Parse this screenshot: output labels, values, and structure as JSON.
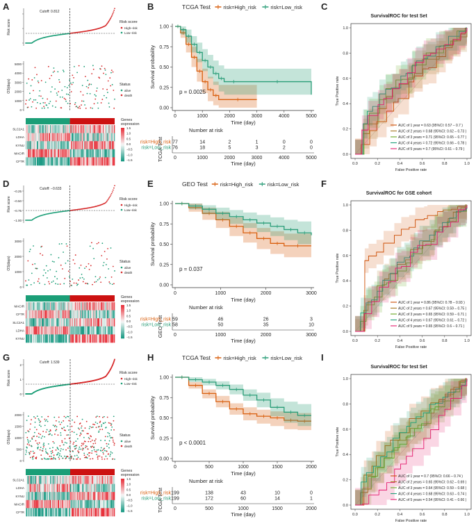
{
  "colors": {
    "high": "#d95f0e",
    "low": "#2a9d78",
    "risk_high": "#d62728",
    "risk_low": "#1b9e77",
    "heat_hi": "#e8323c",
    "heat_mid": "#f7f7f7",
    "heat_lo": "#1c9b85",
    "roc": [
      "#cc4c02",
      "#a6761d",
      "#66a61e",
      "#1b9e77",
      "#e31a6c"
    ]
  },
  "figure": {
    "rows": [
      {
        "risk": {
          "letter": "A",
          "cutoff": "Cutoff: 0.812",
          "ylabel_risk": "Risk score",
          "ylabel_os": "OS(days)",
          "risk_legend": {
            "title": "Risk score",
            "items": [
              "High–risk",
              "Low–risk"
            ]
          },
          "status_legend": {
            "title": "Status",
            "items": [
              "alive",
              "death"
            ]
          },
          "risk_ticks": [
            "",
            "",
            ""
          ],
          "os_ticks": [
            "5000",
            "4000",
            "3000",
            "2000",
            "1000",
            "0"
          ],
          "genes": [
            "SLC2A1",
            "LDHA",
            "KYNU",
            "MACIR",
            "CFTR"
          ],
          "heat_legend": {
            "title": "Genes\nexpression",
            "ticks": [
              "1.5",
              "1.0",
              "0.5",
              "0.0",
              "−0.5",
              "−1.0",
              "−1.5"
            ]
          },
          "n_low": 76,
          "n_high": 77,
          "seed": 11
        },
        "km": {
          "letter": "B",
          "title": "TCGA Test",
          "legend": [
            "risk=High_risk",
            "risk=Low_risk"
          ],
          "ylabel": "Survival probability",
          "xlabel": "Time (day)",
          "pvalue": "p = 0.0025",
          "xticks": [
            0,
            1000,
            2000,
            3000,
            4000,
            5000
          ],
          "yticks": [
            "0.00",
            "0.25",
            "0.50",
            "0.75",
            "1.00"
          ],
          "risk_title": "Number at risk",
          "risk_ylabel": "TCGA Test",
          "risk_rows": [
            {
              "label": "risk=High_risk",
              "counts": [
                "77",
                "14",
                "2",
                "1",
                "0",
                "0"
              ]
            },
            {
              "label": "risk=Low_risk",
              "counts": [
                "76",
                "18",
                "5",
                "3",
                "2",
                "0"
              ]
            }
          ],
          "risk_xticks": [
            "0",
            "1000",
            "2000",
            "3000",
            "4000",
            "5000"
          ]
        },
        "roc": {
          "letter": "C",
          "title": "SurvivalROC for test Set",
          "xlabel": "False Positive rate",
          "ylabel": "True Positive rate",
          "ticks": [
            "0.0",
            "0.2",
            "0.4",
            "0.6",
            "0.8",
            "1.0"
          ],
          "legend": [
            "AUC of 1 year = 0.63 (95%CI: 0.57 – 0.7 )",
            "AUC of 2 years = 0.68 (95%CI: 0.62 – 0.73 )",
            "AUC of 3 years = 0.71 (95%CI: 0.65 – 0.77 )",
            "AUC of 4 years = 0.72 (95%CI: 0.66 – 0.78 )",
            "AUC of 5 years = 0.7 (95%CI: 0.61 – 0.79 )"
          ],
          "seed": 21
        }
      },
      {
        "risk": {
          "letter": "D",
          "cutoff": "Cutoff: −0.633",
          "ylabel_risk": "Risk score",
          "ylabel_os": "OS(days)",
          "risk_legend": {
            "title": "Risk score",
            "items": [
              "High–risk",
              "Low–risk"
            ]
          },
          "status_legend": {
            "title": "Status",
            "items": [
              "alive",
              "death"
            ]
          },
          "risk_ticks": [
            "−0.25",
            "−0.50",
            "−0.75",
            "−1.00"
          ],
          "os_ticks": [
            "3000",
            "2000",
            "1000",
            "0"
          ],
          "genes": [
            "MACIR",
            "CFTR",
            "SLC2A1",
            "LDHA",
            "KYNU"
          ],
          "heat_legend": {
            "title": "Genes\nexpression",
            "ticks": [
              "1.5",
              "1.0",
              "0.5",
              "0.0",
              "−0.5",
              "−1.0",
              "−1.5"
            ]
          },
          "n_low": 58,
          "n_high": 59,
          "seed": 31
        },
        "km": {
          "letter": "E",
          "title": "GEO Test",
          "legend": [
            "risk=High_risk",
            "risk=Low_risk"
          ],
          "ylabel": "Survival probability",
          "xlabel": "Time (day)",
          "pvalue": "p = 0.037",
          "xticks": [
            0,
            1000,
            2000,
            3000
          ],
          "yticks": [
            "0.00",
            "0.25",
            "0.50",
            "0.75",
            "1.00"
          ],
          "risk_title": "Number at risk",
          "risk_ylabel": "GEO Test",
          "risk_rows": [
            {
              "label": "risk=High_risk",
              "counts": [
                "59",
                "46",
                "26",
                "3"
              ]
            },
            {
              "label": "risk=Low_risk",
              "counts": [
                "58",
                "50",
                "35",
                "10"
              ]
            }
          ],
          "risk_xticks": [
            "0",
            "1000",
            "2000",
            "3000"
          ]
        },
        "roc": {
          "letter": "F",
          "title": "SurvivalROC for GSE cohort",
          "xlabel": "False Positive rate",
          "ylabel": "True Positive rate",
          "ticks": [
            "0.0",
            "0.2",
            "0.4",
            "0.6",
            "0.8",
            "1.0"
          ],
          "legend": [
            "AUC of 1 year = 0.86 (95%CI: 0.78 – 0.93 )",
            "AUC of 2 years = 0.67 (95%CI: 0.59 – 0.75 )",
            "AUC of 3 years = 0.65 (95%CI: 0.59 – 0.71 )",
            "AUC of 4 years = 0.67 (95%CI: 0.61 – 0.72 )",
            "AUC of 5 years = 0.65 (95%CI: 0.6 – 0.71 )"
          ],
          "seed": 41
        }
      },
      {
        "risk": {
          "letter": "G",
          "cutoff": "Cutoff: 1.539",
          "ylabel_risk": "Risk score",
          "ylabel_os": "OS(days)",
          "risk_legend": {
            "title": "Risk score",
            "items": [
              "High–risk",
              "Low–risk"
            ]
          },
          "status_legend": {
            "title": "Status",
            "items": [
              "alive",
              "death"
            ]
          },
          "risk_ticks": [
            "2",
            "1",
            "0"
          ],
          "os_ticks": [
            "2000",
            "1500",
            "1000",
            "500",
            "0"
          ],
          "genes": [
            "SLC2A1",
            "LDHA",
            "KYNU",
            "MACIR",
            "CFTR"
          ],
          "heat_legend": {
            "title": "Genes\nexpression",
            "ticks": [
              "1.5",
              "1.0",
              "0.5",
              "0.0",
              "−0.5",
              "−1.0",
              "−1.5"
            ]
          },
          "n_low": 199,
          "n_high": 199,
          "seed": 51
        },
        "km": {
          "letter": "H",
          "title": "TCGA Test",
          "legend": [
            "risk=High_risk",
            "risk=Low_risk"
          ],
          "ylabel": "Survival probability",
          "xlabel": "Time (day)",
          "pvalue": "p < 0.0001",
          "xticks": [
            0,
            500,
            1000,
            1500,
            2000
          ],
          "yticks": [
            "0.00",
            "0.25",
            "0.50",
            "0.75",
            "1.00"
          ],
          "risk_title": "Number at risk",
          "risk_ylabel": "TCGA Test",
          "risk_rows": [
            {
              "label": "risk=High_risk",
              "counts": [
                "199",
                "138",
                "43",
                "10",
                "0"
              ]
            },
            {
              "label": "risk=Low_risk",
              "counts": [
                "199",
                "172",
                "60",
                "14",
                "1"
              ]
            }
          ],
          "risk_xticks": [
            "0",
            "500",
            "1000",
            "1500",
            "2000"
          ]
        },
        "roc": {
          "letter": "I",
          "title": "SurvivalROC for test Set",
          "xlabel": "False Positive rate",
          "ylabel": "True Positive rate",
          "ticks": [
            "0.0",
            "0.2",
            "0.4",
            "0.6",
            "0.8",
            "1.0"
          ],
          "legend": [
            "AUC of 1 year = 0.7 (95%CI: 0.66 – 0.74 )",
            "AUC of 2 years = 0.65 (95%CI: 0.62 – 0.69 )",
            "AUC of 3 years = 0.64 (95%CI: 0.59 – 0.68 )",
            "AUC of 4 years = 0.68 (95%CI: 0.63 – 0.74 )",
            "AUC of 5 years = 0.54 (95%CI: 0.41 – 0.66 )"
          ],
          "seed": 61
        }
      }
    ]
  },
  "chart_data": [
    {
      "type": "line",
      "panel": "B",
      "title": "TCGA Test",
      "xlabel": "Time (day)",
      "ylabel": "Survival probability",
      "xlim": [
        0,
        5000
      ],
      "ylim": [
        0,
        1
      ],
      "pvalue": "p = 0.0025",
      "series": [
        {
          "name": "risk=High_risk",
          "x": [
            0,
            200,
            400,
            600,
            800,
            1000,
            1200,
            1400,
            1600,
            3000
          ],
          "y": [
            1.0,
            0.92,
            0.78,
            0.62,
            0.45,
            0.32,
            0.22,
            0.15,
            0.1,
            0.1
          ],
          "lower": [
            1.0,
            0.86,
            0.68,
            0.5,
            0.32,
            0.18,
            0.08,
            0.03,
            0.0,
            0.0
          ],
          "upper": [
            1.0,
            0.97,
            0.88,
            0.75,
            0.6,
            0.48,
            0.38,
            0.32,
            0.28,
            0.28
          ]
        },
        {
          "name": "risk=Low_risk",
          "x": [
            0,
            200,
            400,
            600,
            800,
            1000,
            1200,
            1400,
            1600,
            1800,
            2500,
            5000
          ],
          "y": [
            1.0,
            0.96,
            0.88,
            0.78,
            0.68,
            0.58,
            0.5,
            0.42,
            0.36,
            0.32,
            0.32,
            0.16
          ],
          "lower": [
            1.0,
            0.9,
            0.8,
            0.68,
            0.56,
            0.45,
            0.36,
            0.28,
            0.2,
            0.16,
            0.16,
            0.02
          ],
          "upper": [
            1.0,
            1.0,
            0.96,
            0.88,
            0.8,
            0.72,
            0.65,
            0.58,
            0.52,
            0.48,
            0.48,
            0.48
          ]
        }
      ]
    },
    {
      "type": "line",
      "panel": "E",
      "title": "GEO Test",
      "xlabel": "Time (day)",
      "ylabel": "Survival probability",
      "xlim": [
        0,
        3000
      ],
      "ylim": [
        0,
        1
      ],
      "pvalue": "p = 0.037",
      "series": [
        {
          "name": "risk=High_risk",
          "x": [
            0,
            300,
            600,
            900,
            1200,
            1500,
            1800,
            2100,
            2400,
            3000
          ],
          "y": [
            1.0,
            0.95,
            0.88,
            0.8,
            0.72,
            0.64,
            0.57,
            0.51,
            0.48,
            0.48
          ],
          "lower": [
            1.0,
            0.9,
            0.8,
            0.7,
            0.6,
            0.52,
            0.44,
            0.38,
            0.34,
            0.34
          ],
          "upper": [
            1.0,
            1.0,
            0.95,
            0.9,
            0.83,
            0.76,
            0.7,
            0.66,
            0.63,
            0.63
          ]
        },
        {
          "name": "risk=Low_risk",
          "x": [
            0,
            300,
            600,
            900,
            1200,
            1500,
            1800,
            2100,
            2400,
            2700,
            3000
          ],
          "y": [
            1.0,
            0.97,
            0.93,
            0.88,
            0.84,
            0.8,
            0.76,
            0.72,
            0.68,
            0.64,
            0.61
          ],
          "lower": [
            1.0,
            0.93,
            0.87,
            0.8,
            0.75,
            0.7,
            0.65,
            0.6,
            0.55,
            0.5,
            0.46
          ],
          "upper": [
            1.0,
            1.0,
            0.98,
            0.95,
            0.92,
            0.89,
            0.86,
            0.83,
            0.8,
            0.78,
            0.76
          ]
        }
      ]
    },
    {
      "type": "line",
      "panel": "H",
      "title": "TCGA Test",
      "xlabel": "Time (day)",
      "ylabel": "Survival probability",
      "xlim": [
        0,
        2000
      ],
      "ylim": [
        0,
        1
      ],
      "pvalue": "p < 0.0001",
      "series": [
        {
          "name": "risk=High_risk",
          "x": [
            0,
            200,
            400,
            600,
            800,
            1000,
            1200,
            1400,
            1600,
            1800,
            2000
          ],
          "y": [
            1.0,
            0.9,
            0.8,
            0.7,
            0.61,
            0.55,
            0.52,
            0.5,
            0.47,
            0.46,
            0.46
          ],
          "lower": [
            1.0,
            0.86,
            0.74,
            0.63,
            0.54,
            0.47,
            0.43,
            0.4,
            0.36,
            0.35,
            0.35
          ],
          "upper": [
            1.0,
            0.94,
            0.85,
            0.77,
            0.68,
            0.63,
            0.6,
            0.58,
            0.57,
            0.56,
            0.56
          ]
        },
        {
          "name": "risk=Low_risk",
          "x": [
            0,
            200,
            400,
            600,
            800,
            1000,
            1200,
            1400,
            1600,
            1800,
            2000
          ],
          "y": [
            1.0,
            0.97,
            0.94,
            0.9,
            0.85,
            0.78,
            0.72,
            0.63,
            0.57,
            0.53,
            0.53
          ],
          "lower": [
            1.0,
            0.94,
            0.9,
            0.85,
            0.79,
            0.71,
            0.63,
            0.52,
            0.44,
            0.4,
            0.4
          ],
          "upper": [
            1.0,
            1.0,
            0.98,
            0.95,
            0.91,
            0.85,
            0.81,
            0.74,
            0.7,
            0.67,
            0.67
          ]
        }
      ]
    },
    {
      "type": "line",
      "panel": "C",
      "title": "SurvivalROC for test Set",
      "xlabel": "False Positive rate",
      "ylabel": "True Positive rate",
      "xlim": [
        0,
        1
      ],
      "ylim": [
        0,
        1
      ],
      "series": [
        {
          "name": "AUC of 1 year",
          "auc": 0.63
        },
        {
          "name": "AUC of 2 years",
          "auc": 0.68
        },
        {
          "name": "AUC of 3 years",
          "auc": 0.71
        },
        {
          "name": "AUC of 4 years",
          "auc": 0.72
        },
        {
          "name": "AUC of 5 years",
          "auc": 0.7
        }
      ]
    },
    {
      "type": "line",
      "panel": "F",
      "title": "SurvivalROC for GSE cohort",
      "xlabel": "False Positive rate",
      "ylabel": "True Positive rate",
      "xlim": [
        0,
        1
      ],
      "ylim": [
        0,
        1
      ],
      "series": [
        {
          "name": "AUC of 1 year",
          "auc": 0.86
        },
        {
          "name": "AUC of 2 years",
          "auc": 0.67
        },
        {
          "name": "AUC of 3 years",
          "auc": 0.65
        },
        {
          "name": "AUC of 4 years",
          "auc": 0.67
        },
        {
          "name": "AUC of 5 years",
          "auc": 0.65
        }
      ]
    },
    {
      "type": "line",
      "panel": "I",
      "title": "SurvivalROC for test Set",
      "xlabel": "False Positive rate",
      "ylabel": "True Positive rate",
      "xlim": [
        0,
        1
      ],
      "ylim": [
        0,
        1
      ],
      "series": [
        {
          "name": "AUC of 1 year",
          "auc": 0.7
        },
        {
          "name": "AUC of 2 years",
          "auc": 0.65
        },
        {
          "name": "AUC of 3 years",
          "auc": 0.64
        },
        {
          "name": "AUC of 4 years",
          "auc": 0.68
        },
        {
          "name": "AUC of 5 years",
          "auc": 0.54
        }
      ]
    }
  ]
}
